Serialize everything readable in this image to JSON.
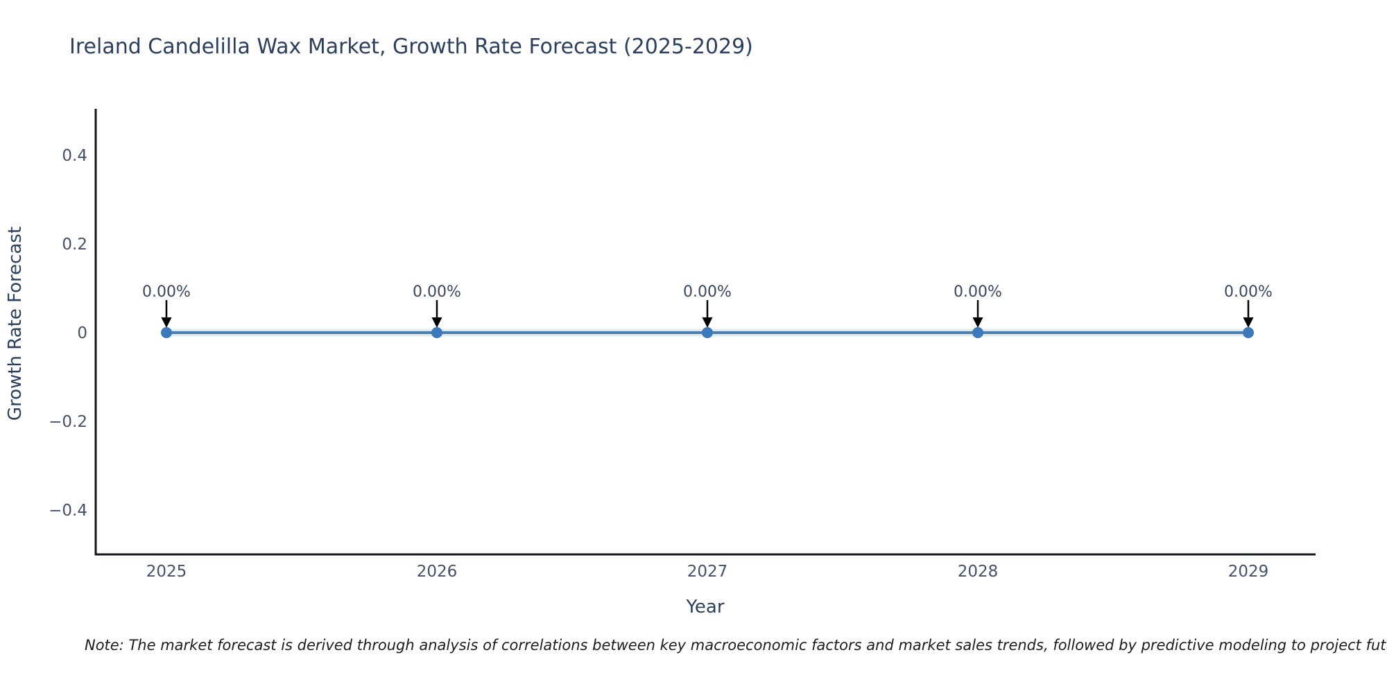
{
  "title": "Ireland Candelilla Wax Market, Growth Rate Forecast (2025-2029)",
  "note": "Note: The market forecast is derived through analysis of correlations between key macroeconomic factors and market sales trends, followed by predictive modeling to project future sales.",
  "chart_data": {
    "type": "line",
    "x": [
      2025,
      2026,
      2027,
      2028,
      2029
    ],
    "series": [
      {
        "name": "Growth Rate Forecast",
        "values": [
          0,
          0,
          0,
          0,
          0
        ]
      }
    ],
    "point_labels": [
      "0.00%",
      "0.00%",
      "0.00%",
      "0.00%",
      "0.00%"
    ],
    "title": "Ireland Candelilla Wax Market, Growth Rate Forecast (2025-2029)",
    "xlabel": "Year",
    "ylabel": "Growth Rate Forecast",
    "ytick_labels": [
      "0.4",
      "0.2",
      "0",
      "−0.2",
      "−0.4"
    ],
    "ytick_values": [
      0.4,
      0.2,
      0,
      -0.2,
      -0.4
    ],
    "ylim": [
      -0.505,
      0.505
    ],
    "grid": false,
    "legend": "none",
    "annotations_have_arrows": true,
    "colors": {
      "line": "#4d80ad",
      "line_halo": "rgba(77,128,173,0.16)",
      "marker": "#3a7abc",
      "arrow": "#000000",
      "axis_line": "#12151f",
      "title_text": "#2a3f5f",
      "axis_title_text": "#2a3f5f",
      "tick_text": "#45516b",
      "point_label_text": "#3a4660"
    }
  }
}
